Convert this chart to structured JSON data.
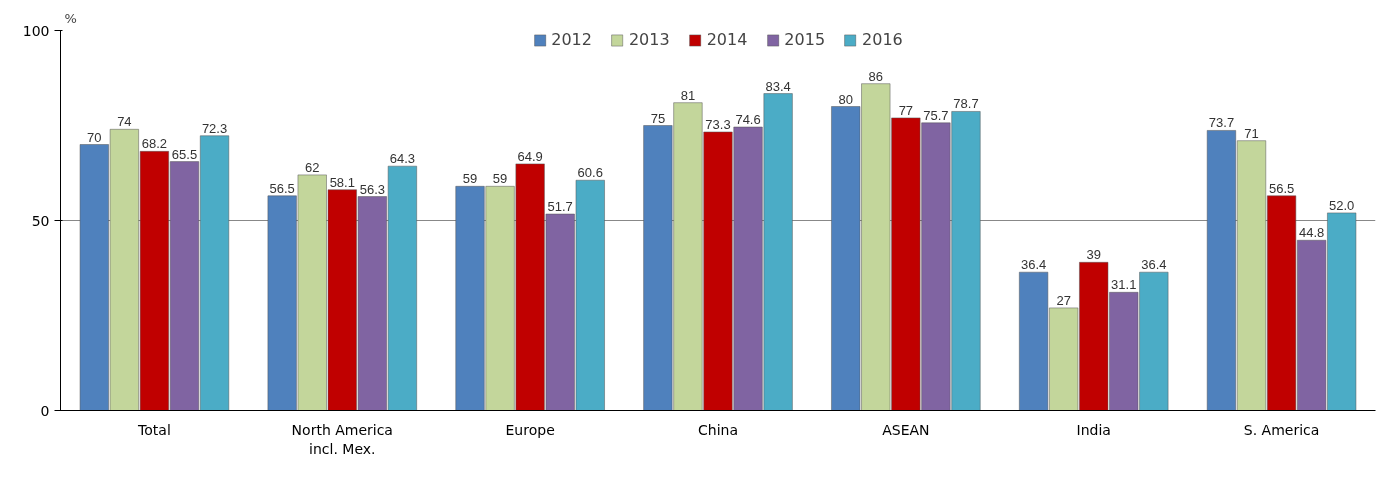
{
  "chart_data": {
    "type": "bar",
    "ylabel": "%",
    "categories": [
      "Total",
      "North America\nincl. Mex.",
      "Europe",
      "China",
      "ASEAN",
      "India",
      "S. America"
    ],
    "ylim": [
      0,
      100
    ],
    "yticks": [
      0,
      50,
      100
    ],
    "grid": "y",
    "legend": "top",
    "series": [
      {
        "name": "2012",
        "color": "#4f81bd",
        "values": [
          70,
          56.5,
          59,
          75,
          80,
          36.4,
          73.7
        ],
        "value_labels": [
          "70",
          "56.5",
          "59",
          "75",
          "80",
          "36.4",
          "73.7"
        ]
      },
      {
        "name": "2013",
        "color": "#c3d69b",
        "values": [
          74,
          62,
          59,
          81,
          86,
          27,
          71
        ],
        "value_labels": [
          "74",
          "62",
          "59",
          "81",
          "86",
          "27",
          "71"
        ]
      },
      {
        "name": "2014",
        "color": "#c00000",
        "values": [
          68.2,
          58.1,
          64.9,
          73.3,
          77,
          39,
          56.5
        ],
        "value_labels": [
          "68.2",
          "58.1",
          "64.9",
          "73.3",
          "77",
          "39",
          "56.5"
        ]
      },
      {
        "name": "2015",
        "color": "#8064a2",
        "values": [
          65.5,
          56.3,
          51.7,
          74.6,
          75.7,
          31.1,
          44.8
        ],
        "value_labels": [
          "65.5",
          "56.3",
          "51.7",
          "74.6",
          "75.7",
          "31.1",
          "44.8"
        ]
      },
      {
        "name": "2016",
        "color": "#4bacc6",
        "values": [
          72.3,
          64.3,
          60.6,
          83.4,
          78.7,
          36.4,
          52.0
        ],
        "value_labels": [
          "72.3",
          "64.3",
          "60.6",
          "83.4",
          "78.7",
          "36.4",
          "52.0"
        ]
      }
    ]
  }
}
